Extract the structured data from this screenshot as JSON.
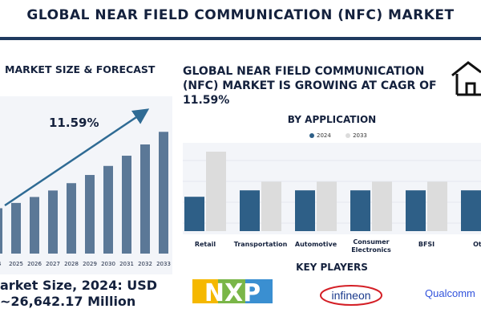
{
  "page": {
    "title": "GLOBAL NEAR FIELD COMMUNICATION (NFC) MARKET",
    "left_header": "MARKET SIZE & FORECAST",
    "right_heading": "GLOBAL NEAR FIELD COMMUNICATION (NFC) MARKET IS GROWING AT CAGR OF 11.59%",
    "market_size_line1": "arket Size, 2024: USD",
    "market_size_line2": "~26,642.17 Million",
    "key_players_title": "KEY PLAYERS"
  },
  "logos": {
    "nxp": "NXP",
    "infineon": "infineon",
    "qualcomm": "Qualcomm"
  },
  "icons": {
    "house": "house-icon"
  },
  "colors": {
    "navy": "#14213d",
    "bar_blue": "#5b7897",
    "series_2024": "#2e5f87",
    "series_2033": "#dcdcdc",
    "arrow": "#2f6b94"
  },
  "chart_data": [
    {
      "type": "bar",
      "title": "",
      "categories": [
        "24",
        "2025",
        "2026",
        "2027",
        "2028",
        "2029",
        "2030",
        "2031",
        "2032",
        "2033"
      ],
      "values": [
        26.6,
        29.7,
        33.2,
        37.0,
        41.3,
        46.1,
        51.4,
        57.4,
        64.0,
        71.4
      ],
      "annotation": "11.59%",
      "ylim": [
        0,
        80
      ]
    },
    {
      "type": "bar",
      "title": "BY APPLICATION",
      "categories": [
        "Retail",
        "Transportation",
        "Automotive",
        "Consumer Electronics",
        "BFSI",
        "Othe"
      ],
      "series": [
        {
          "name": "2024",
          "values": [
            3.2,
            3.8,
            3.8,
            3.8,
            3.8,
            3.8
          ]
        },
        {
          "name": "2033",
          "values": [
            7.4,
            4.6,
            4.6,
            4.6,
            4.6,
            4.6
          ]
        }
      ],
      "ylim": [
        0,
        8
      ],
      "legend": "top"
    }
  ]
}
